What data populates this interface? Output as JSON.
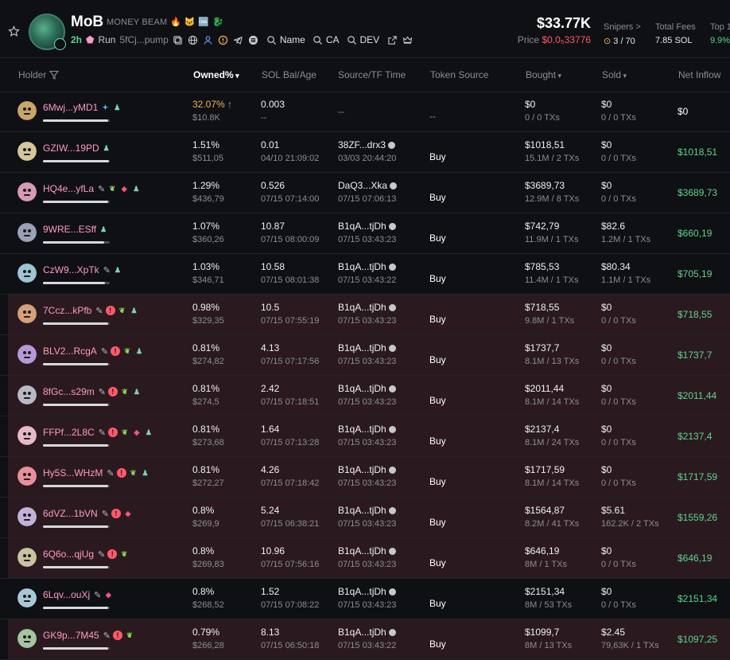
{
  "token": {
    "name": "MoB",
    "full_name": "MONEY BEAM",
    "flags": [
      "🔥",
      "🐱",
      "🆒",
      "🐉"
    ],
    "age": "2h",
    "run_label": "Run",
    "ca_short": "5fCj...pump",
    "search_name": "Name",
    "search_ca": "CA",
    "search_dev": "DEV",
    "market_cap": "$33.77K",
    "price_label": "Price",
    "price_value": "$0.0₅33776"
  },
  "stats": {
    "snipers_label": "Snipers >",
    "snipers_value": "3 / 70",
    "fees_label": "Total Fees",
    "fees_value": "7.85 SOL",
    "top_label": "Top 1",
    "top_value": "9.9%"
  },
  "columns": {
    "holder": "Holder",
    "owned": "Owned%",
    "sol": "SOL Bal/Age",
    "source_tf": "Source/TF Time",
    "token_source": "Token Source",
    "bought": "Bought",
    "sold": "Sold",
    "net": "Net Inflow"
  },
  "rows": [
    {
      "addr": "6Mwj...yMD1",
      "tags": [
        "tw",
        "usr"
      ],
      "owned": "32.07%",
      "owned_usd": "$10.8K",
      "up": "↑",
      "sol": "0.003",
      "age": "--",
      "src": "--",
      "tf": "",
      "tsrc": "--",
      "bought": "$0",
      "bought_sub": "0 / 0 TXs",
      "sold": "$0",
      "sold_sub": "0 / 0 TXs",
      "net": "$0",
      "bar": 0.98,
      "hl": false,
      "avc": "#c9a56b"
    },
    {
      "addr": "GZIW...19PD",
      "tags": [
        "usr"
      ],
      "owned": "1.51%",
      "owned_usd": "$511,05",
      "up": "",
      "sol": "0.01",
      "age": "04/10 21:09:02",
      "src": "38ZF...drx3",
      "tf": "03/03 20:44:20",
      "tsrc": "Buy",
      "bought": "$1018,51",
      "bought_sub": "15.1M / 2 TXs",
      "sold": "$0",
      "sold_sub": "0 / 0 TXs",
      "net": "$1018,51",
      "bar": 0.99,
      "hl": false,
      "avc": "#d5c79a"
    },
    {
      "addr": "HQ4e...yfLa",
      "tags": [
        "pen",
        "grn",
        "pink",
        "usr"
      ],
      "owned": "1.29%",
      "owned_usd": "$436,79",
      "up": "",
      "sol": "0.526",
      "age": "07/15 07:14:00",
      "src": "DaQ3...Xka",
      "tf": "07/15 07:06:13",
      "tsrc": "Buy",
      "bought": "$3689,73",
      "bought_sub": "12.9M / 8 TXs",
      "sold": "$0",
      "sold_sub": "0 / 0 TXs",
      "net": "$3689,73",
      "bar": 0.98,
      "hl": false,
      "avc": "#d79ab5"
    },
    {
      "addr": "9WRE...ESff",
      "tags": [
        "usr"
      ],
      "owned": "1.07%",
      "owned_usd": "$360,26",
      "up": "",
      "sol": "10.87",
      "age": "07/15 08:00:09",
      "src": "B1qA...tjDh",
      "tf": "07/15 03:43:23",
      "tsrc": "Buy",
      "bought": "$742,79",
      "bought_sub": "11.9M / 1 TXs",
      "sold": "$82.6",
      "sold_sub": "1.2M / 1 TXs",
      "net": "$660,19",
      "bar": 0.92,
      "hl": false,
      "avc": "#9aa0b5"
    },
    {
      "addr": "CzW9...XpTk",
      "tags": [
        "pen",
        "usr"
      ],
      "owned": "1.03%",
      "owned_usd": "$346,71",
      "up": "",
      "sol": "10.58",
      "age": "07/15 08:01:38",
      "src": "B1qA...tjDh",
      "tf": "07/15 03:43:22",
      "tsrc": "Buy",
      "bought": "$785,53",
      "bought_sub": "11.4M / 1 TXs",
      "sold": "$80.34",
      "sold_sub": "1.1M / 1 TXs",
      "net": "$705,19",
      "bar": 0.93,
      "hl": false,
      "avc": "#9fc4d3"
    },
    {
      "addr": "7Ccz...kPfb",
      "tags": [
        "pen",
        "red",
        "grn",
        "usr"
      ],
      "owned": "0.98%",
      "owned_usd": "$329,35",
      "up": "",
      "sol": "10.5",
      "age": "07/15 07:55:19",
      "src": "B1qA...tjDh",
      "tf": "07/15 03:43:23",
      "tsrc": "Buy",
      "bought": "$718,55",
      "bought_sub": "9.8M / 1 TXs",
      "sold": "$0",
      "sold_sub": "0 / 0 TXs",
      "net": "$718,55",
      "bar": 0.98,
      "hl": true,
      "avc": "#d8a07a"
    },
    {
      "addr": "BLV2...RcgA",
      "tags": [
        "pen",
        "red",
        "grn",
        "usr"
      ],
      "owned": "0.81%",
      "owned_usd": "$274,82",
      "up": "",
      "sol": "4.13",
      "age": "07/15 07:17:56",
      "src": "B1qA...tjDh",
      "tf": "07/15 03:43:23",
      "tsrc": "Buy",
      "bought": "$1737,7",
      "bought_sub": "8.1M / 13 TXs",
      "sold": "$0",
      "sold_sub": "0 / 0 TXs",
      "net": "$1737,7",
      "bar": 0.98,
      "hl": true,
      "avc": "#b69ad8"
    },
    {
      "addr": "8fGc...s29m",
      "tags": [
        "pen",
        "red",
        "grn",
        "usr"
      ],
      "owned": "0.81%",
      "owned_usd": "$274,5",
      "up": "",
      "sol": "2.42",
      "age": "07/15 07:18:51",
      "src": "B1qA...tjDh",
      "tf": "07/15 03:43:23",
      "tsrc": "Buy",
      "bought": "$2011,44",
      "bought_sub": "8.1M / 14 TXs",
      "sold": "$0",
      "sold_sub": "0 / 0 TXs",
      "net": "$2011,44",
      "bar": 0.98,
      "hl": true,
      "avc": "#b9b9c5"
    },
    {
      "addr": "FFPf...2L8C",
      "tags": [
        "pen",
        "red",
        "grn",
        "pink",
        "usr"
      ],
      "owned": "0.81%",
      "owned_usd": "$273,68",
      "up": "",
      "sol": "1.64",
      "age": "07/15 07:13:28",
      "src": "B1qA...tjDh",
      "tf": "07/15 03:43:23",
      "tsrc": "Buy",
      "bought": "$2137,4",
      "bought_sub": "8.1M / 24 TXs",
      "sold": "$0",
      "sold_sub": "0 / 0 TXs",
      "net": "$2137,4",
      "bar": 0.98,
      "hl": true,
      "avc": "#e6b8c8"
    },
    {
      "addr": "Hy5S...WHzM",
      "tags": [
        "pen",
        "red",
        "grn",
        "usr"
      ],
      "owned": "0.81%",
      "owned_usd": "$272,27",
      "up": "",
      "sol": "4.26",
      "age": "07/15 07:18:42",
      "src": "B1qA...tjDh",
      "tf": "07/15 03:43:23",
      "tsrc": "Buy",
      "bought": "$1717,59",
      "bought_sub": "8.1M / 14 TXs",
      "sold": "$0",
      "sold_sub": "0 / 0 TXs",
      "net": "$1717,59",
      "bar": 0.98,
      "hl": true,
      "avc": "#e8909a"
    },
    {
      "addr": "6dVZ...1bVN",
      "tags": [
        "pen",
        "red",
        "pink"
      ],
      "owned": "0.8%",
      "owned_usd": "$269,9",
      "up": "",
      "sol": "5.24",
      "age": "07/15 06:38:21",
      "src": "B1qA...tjDh",
      "tf": "07/15 03:43:23",
      "tsrc": "Buy",
      "bought": "$1564,87",
      "bought_sub": "8.2M / 41 TXs",
      "sold": "$5.61",
      "sold_sub": "162.2K / 2 TXs",
      "net": "$1559,26",
      "bar": 0.98,
      "hl": true,
      "avc": "#c5b0d8"
    },
    {
      "addr": "6Q6o...qjUg",
      "tags": [
        "pen",
        "red",
        "grn"
      ],
      "owned": "0.8%",
      "owned_usd": "$269,83",
      "up": "",
      "sol": "10.96",
      "age": "07/15 07:56:16",
      "src": "B1qA...tjDh",
      "tf": "07/15 03:43:23",
      "tsrc": "Buy",
      "bought": "$646,19",
      "bought_sub": "8M / 1 TXs",
      "sold": "$0",
      "sold_sub": "0 / 0 TXs",
      "net": "$646,19",
      "bar": 0.98,
      "hl": true,
      "avc": "#c8c3a0"
    },
    {
      "addr": "6Lqv...ouXj",
      "tags": [
        "pen",
        "pink"
      ],
      "owned": "0.8%",
      "owned_usd": "$268,52",
      "up": "",
      "sol": "1.52",
      "age": "07/15 07:08:22",
      "src": "B1qA...tjDh",
      "tf": "07/15 03:43:23",
      "tsrc": "Buy",
      "bought": "$2151,34",
      "bought_sub": "8M / 53 TXs",
      "sold": "$0",
      "sold_sub": "0 / 0 TXs",
      "net": "$2151,34",
      "bar": 0.98,
      "hl": false,
      "avc": "#a8c8d8"
    },
    {
      "addr": "GK9p...7M45",
      "tags": [
        "pen",
        "red",
        "grn"
      ],
      "owned": "0.79%",
      "owned_usd": "$266,28",
      "up": "",
      "sol": "8.13",
      "age": "07/15 06:50:18",
      "src": "B1qA...tjDh",
      "tf": "07/15 03:43:22",
      "tsrc": "Buy",
      "bought": "$1099,7",
      "bought_sub": "8M / 13 TXs",
      "sold": "$2.45",
      "sold_sub": "79,63K / 1 TXs",
      "net": "$1097,25",
      "bar": 0.98,
      "hl": true,
      "avc": "#a5c5a0"
    }
  ]
}
